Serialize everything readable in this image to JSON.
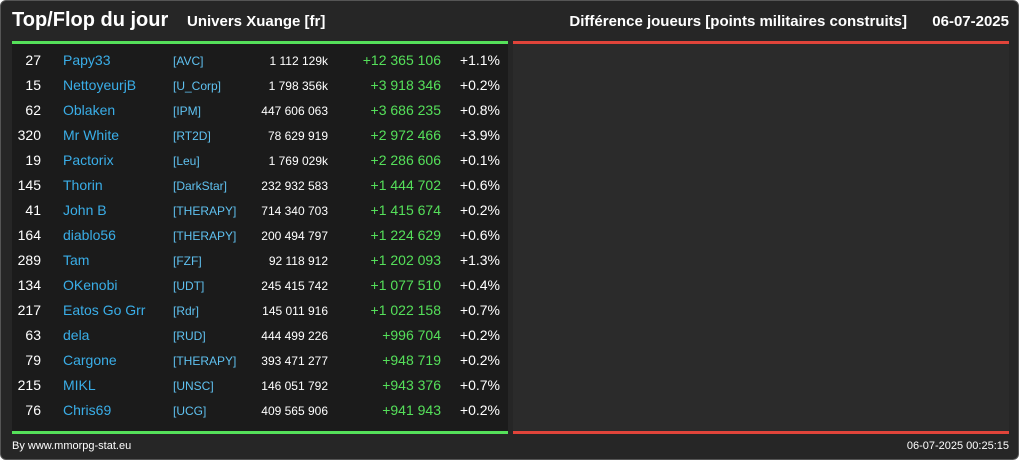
{
  "header": {
    "title": "Top/Flop du jour",
    "universe": "Univers Xuange [fr]",
    "subtitle": "Différence joueurs [points militaires construits]",
    "date": "06-07-2025"
  },
  "colors": {
    "background": "#262626",
    "panel": "#1b1b1b",
    "green": "#55e05a",
    "red": "#e0443a",
    "name": "#3aaee8"
  },
  "rows": [
    {
      "rank": "27",
      "name": "Papy33",
      "alliance": "[AVC]",
      "points": "1 112 129k",
      "diff": "+12 365 106",
      "pct": "+1.1%"
    },
    {
      "rank": "15",
      "name": "NettoyeurjB",
      "alliance": "[U_Corp]",
      "points": "1 798 356k",
      "diff": "+3 918 346",
      "pct": "+0.2%"
    },
    {
      "rank": "62",
      "name": "Oblaken",
      "alliance": "[IPM]",
      "points": "447 606 063",
      "diff": "+3 686 235",
      "pct": "+0.8%"
    },
    {
      "rank": "320",
      "name": "Mr White",
      "alliance": "[RT2D]",
      "points": "78 629 919",
      "diff": "+2 972 466",
      "pct": "+3.9%"
    },
    {
      "rank": "19",
      "name": "Pactorix",
      "alliance": "[Leu]",
      "points": "1 769 029k",
      "diff": "+2 286 606",
      "pct": "+0.1%"
    },
    {
      "rank": "145",
      "name": "Thorin",
      "alliance": "[DarkStar]",
      "points": "232 932 583",
      "diff": "+1 444 702",
      "pct": "+0.6%"
    },
    {
      "rank": "41",
      "name": "John B",
      "alliance": "[THERAPY]",
      "points": "714 340 703",
      "diff": "+1 415 674",
      "pct": "+0.2%"
    },
    {
      "rank": "164",
      "name": "diablo56",
      "alliance": "[THERAPY]",
      "points": "200 494 797",
      "diff": "+1 224 629",
      "pct": "+0.6%"
    },
    {
      "rank": "289",
      "name": "Tam",
      "alliance": "[FZF]",
      "points": "92 118 912",
      "diff": "+1 202 093",
      "pct": "+1.3%"
    },
    {
      "rank": "134",
      "name": "OKenobi",
      "alliance": "[UDT]",
      "points": "245 415 742",
      "diff": "+1 077 510",
      "pct": "+0.4%"
    },
    {
      "rank": "217",
      "name": "Eatos Go Grr",
      "alliance": "[Rdr]",
      "points": "145 011 916",
      "diff": "+1 022 158",
      "pct": "+0.7%"
    },
    {
      "rank": "63",
      "name": "dela",
      "alliance": "[RUD]",
      "points": "444 499 226",
      "diff": "+996 704",
      "pct": "+0.2%"
    },
    {
      "rank": "79",
      "name": "Cargone",
      "alliance": "[THERAPY]",
      "points": "393 471 277",
      "diff": "+948 719",
      "pct": "+0.2%"
    },
    {
      "rank": "215",
      "name": "MIKL",
      "alliance": "[UNSC]",
      "points": "146 051 792",
      "diff": "+943 376",
      "pct": "+0.7%"
    },
    {
      "rank": "76",
      "name": "Chris69",
      "alliance": "[UCG]",
      "points": "409 565 906",
      "diff": "+941 943",
      "pct": "+0.2%"
    }
  ],
  "footer": {
    "credit": "By www.mmorpg-stat.eu",
    "timestamp": "06-07-2025 00:25:15"
  }
}
